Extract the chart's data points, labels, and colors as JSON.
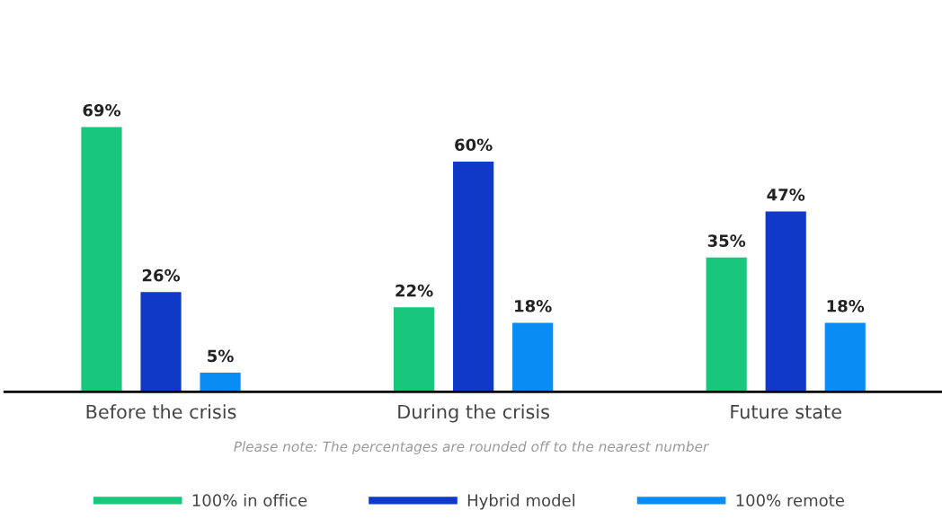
{
  "chart_data": {
    "type": "bar",
    "categories": [
      "Before the crisis",
      "During the crisis",
      "Future state"
    ],
    "series": [
      {
        "name": "100% in office",
        "color": "#18c77b",
        "values": [
          69,
          22,
          35
        ],
        "value_labels": [
          "69%",
          "22%",
          "35%"
        ]
      },
      {
        "name": "Hybrid model",
        "color": "#1039c8",
        "values": [
          26,
          60,
          47
        ],
        "value_labels": [
          "26%",
          "60%",
          "47%"
        ]
      },
      {
        "name": "100% remote",
        "color": "#0a8cf5",
        "values": [
          5,
          18,
          18
        ],
        "value_labels": [
          "5%",
          "18%",
          "18%"
        ]
      }
    ],
    "legend": "bottom",
    "annotations": [
      "Please note: The percentages are rounded off to the nearest number"
    ]
  }
}
